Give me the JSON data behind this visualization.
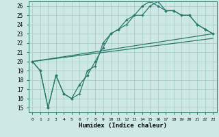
{
  "xlabel": "Humidex (Indice chaleur)",
  "bg_color": "#cde8e5",
  "grid_color": "#a8ceca",
  "line_color": "#2a7a6a",
  "xlim": [
    -0.5,
    23.5
  ],
  "ylim": [
    14.5,
    26.5
  ],
  "xticks": [
    0,
    1,
    2,
    3,
    4,
    5,
    6,
    7,
    8,
    9,
    10,
    11,
    12,
    13,
    14,
    15,
    16,
    17,
    18,
    19,
    20,
    21,
    22,
    23
  ],
  "yticks": [
    15,
    16,
    17,
    18,
    19,
    20,
    21,
    22,
    23,
    24,
    25,
    26
  ],
  "line1_x": [
    0,
    1,
    2,
    3,
    4,
    5,
    6,
    7,
    8,
    9,
    10,
    11,
    12,
    13,
    14,
    15,
    16,
    17,
    18,
    19,
    20,
    21,
    22,
    23
  ],
  "line1_y": [
    20,
    19,
    15,
    18.5,
    16.5,
    16,
    16.5,
    19,
    19.5,
    22,
    23,
    23.5,
    24,
    25,
    25,
    26,
    26.5,
    25.5,
    25.5,
    25,
    25,
    24,
    23.5,
    23
  ],
  "line2_x": [
    0,
    1,
    2,
    3,
    4,
    5,
    6,
    7,
    8,
    9,
    10,
    11,
    12,
    13,
    14,
    15,
    16,
    17,
    18,
    19,
    20,
    21,
    22,
    23
  ],
  "line2_y": [
    20,
    19,
    15,
    18.5,
    16.5,
    16,
    17.5,
    18.5,
    20,
    21.5,
    23,
    23.5,
    24.5,
    25,
    26,
    26.5,
    26,
    25.5,
    25.5,
    25,
    25,
    24,
    23.5,
    23
  ],
  "line3_x": [
    0,
    23
  ],
  "line3_y": [
    20,
    23
  ],
  "line4_x": [
    0,
    23
  ],
  "line4_y": [
    20,
    22.5
  ]
}
